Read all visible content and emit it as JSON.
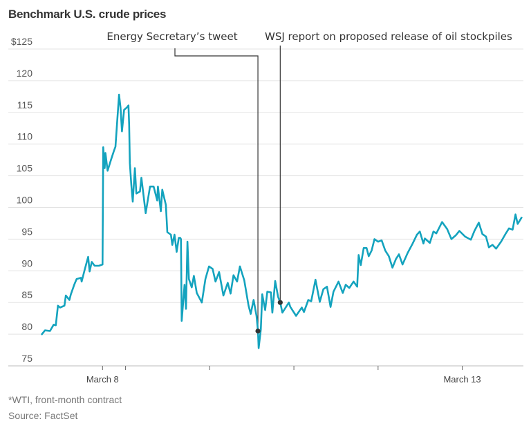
{
  "chart_data": {
    "type": "line",
    "title": "Benchmark U.S. crude prices",
    "xlabel": "",
    "ylabel": "",
    "y_unit_prefix": "$",
    "ylim": [
      75,
      125
    ],
    "xlim": [
      6.69,
      13.85
    ],
    "grid": true,
    "line_color": "#14a3be",
    "annotation_color": "#333333",
    "yticks": [
      {
        "value": 125,
        "label": "$125"
      },
      {
        "value": 120,
        "label": "120"
      },
      {
        "value": 115,
        "label": "115"
      },
      {
        "value": 110,
        "label": "110"
      },
      {
        "value": 105,
        "label": "105"
      },
      {
        "value": 100,
        "label": "100"
      },
      {
        "value": 95,
        "label": "95"
      },
      {
        "value": 90,
        "label": "90"
      },
      {
        "value": 85,
        "label": "85"
      },
      {
        "value": 80,
        "label": "80"
      },
      {
        "value": 75,
        "label": "75"
      }
    ],
    "xticks": [
      {
        "value": 8,
        "label": "March 8"
      },
      {
        "value": 8.32,
        "label": ""
      },
      {
        "value": 9.49,
        "label": ""
      },
      {
        "value": 10.66,
        "label": ""
      },
      {
        "value": 11.83,
        "label": ""
      },
      {
        "value": 13,
        "label": "March 13"
      }
    ],
    "series": [
      {
        "x": [
          7.15,
          7.2,
          7.27,
          7.32,
          7.35,
          7.38,
          7.41,
          7.47,
          7.49,
          7.54,
          7.56,
          7.61,
          7.64,
          7.7,
          7.71,
          7.75,
          7.8,
          7.82,
          7.85,
          7.89,
          7.95,
          8.0,
          8.01,
          8.03,
          8.04,
          8.07,
          8.12,
          8.16,
          8.18,
          8.21,
          8.23,
          8.25,
          8.27,
          8.3,
          8.34,
          8.36,
          8.37,
          8.38,
          8.4,
          8.42,
          8.45,
          8.47,
          8.52,
          8.54,
          8.6,
          8.66,
          8.71,
          8.76,
          8.77,
          8.81,
          8.83,
          8.88,
          8.9,
          8.95,
          8.97,
          9.0,
          9.03,
          9.06,
          9.08,
          9.09,
          9.1,
          9.14,
          9.16,
          9.18,
          9.2,
          9.24,
          9.27,
          9.31,
          9.38,
          9.43,
          9.48,
          9.53,
          9.57,
          9.62,
          9.68,
          9.74,
          9.78,
          9.82,
          9.87,
          9.91,
          9.97,
          10.03,
          10.06,
          10.1,
          10.14,
          10.16,
          10.17,
          10.2,
          10.22,
          10.26,
          10.29,
          10.34,
          10.36,
          10.4,
          10.44,
          10.47,
          10.5,
          10.59,
          10.61,
          10.69,
          10.77,
          10.8,
          10.86,
          10.9,
          10.96,
          11.02,
          11.07,
          11.12,
          11.17,
          11.21,
          11.28,
          11.34,
          11.38,
          11.43,
          11.49,
          11.54,
          11.56,
          11.59,
          11.63,
          11.67,
          11.7,
          11.74,
          11.78,
          11.83,
          11.88,
          11.93,
          11.98,
          12.03,
          12.08,
          12.12,
          12.17,
          12.24,
          12.31,
          12.37,
          12.41,
          12.46,
          12.48,
          12.55,
          12.6,
          12.64,
          12.72,
          12.79,
          12.85,
          12.91,
          12.96,
          13.04,
          13.12,
          13.17,
          13.23,
          13.28,
          13.33,
          13.37,
          13.42,
          13.47,
          13.54,
          13.6,
          13.65,
          13.7,
          13.74,
          13.77,
          13.83
        ],
        "y": [
          79.9,
          80.6,
          80.5,
          81.5,
          81.4,
          84.5,
          84.2,
          84.5,
          86.1,
          85.4,
          86.3,
          87.9,
          88.7,
          88.9,
          88.3,
          90.1,
          92.2,
          89.9,
          91.4,
          90.8,
          90.8,
          91.0,
          109.5,
          106.2,
          108.6,
          105.8,
          107.6,
          109.0,
          109.6,
          114.7,
          117.8,
          115.8,
          112.0,
          115.4,
          115.8,
          116.1,
          113.0,
          107.0,
          103.6,
          100.9,
          106.2,
          102.2,
          102.5,
          104.7,
          99.1,
          103.3,
          103.3,
          101.1,
          103.3,
          99.4,
          102.8,
          100.4,
          96.1,
          95.7,
          94.1,
          95.7,
          93.0,
          95.2,
          95.2,
          95.0,
          82.1,
          87.8,
          84.0,
          94.6,
          88.7,
          87.4,
          89.2,
          86.5,
          85.0,
          88.7,
          90.7,
          90.3,
          88.3,
          89.8,
          86.1,
          88.1,
          86.4,
          89.3,
          88.3,
          90.7,
          88.5,
          84.5,
          83.2,
          85.4,
          82.9,
          80.5,
          77.8,
          80.7,
          86.3,
          83.8,
          86.7,
          86.6,
          83.4,
          88.4,
          85.9,
          85.0,
          83.4,
          85.0,
          84.3,
          82.9,
          84.2,
          83.5,
          85.4,
          85.2,
          88.6,
          85.1,
          87.1,
          87.5,
          84.3,
          86.7,
          88.3,
          86.5,
          87.8,
          87.3,
          88.3,
          87.5,
          92.5,
          90.9,
          93.6,
          93.6,
          92.3,
          93.2,
          95.0,
          94.6,
          94.8,
          93.2,
          92.3,
          90.5,
          91.9,
          92.6,
          91.0,
          92.8,
          94.3,
          95.7,
          96.2,
          94.3,
          95.1,
          94.4,
          96.2,
          95.9,
          97.7,
          96.6,
          95.0,
          95.6,
          96.3,
          95.4,
          94.9,
          96.3,
          97.6,
          95.8,
          95.4,
          93.7,
          94.1,
          93.5,
          94.6,
          95.8,
          96.7,
          96.5,
          98.9,
          97.4,
          98.5
        ]
      }
    ],
    "annotations": [
      {
        "label": "Energy Secretary’s tweet",
        "x": 10.16,
        "y": 80.5
      },
      {
        "label": "WSJ report on proposed release of oil stockpiles",
        "x": 10.47,
        "y": 85.0
      }
    ],
    "footnote": "*WTI, front-month contract",
    "source": "Source: FactSet"
  }
}
